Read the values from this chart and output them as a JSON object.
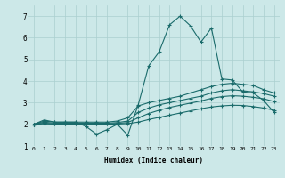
{
  "xlabel": "Humidex (Indice chaleur)",
  "bg_color": "#cce8e8",
  "grid_color": "#aacfcf",
  "line_color": "#1a6b6b",
  "xlim": [
    -0.5,
    23.5
  ],
  "ylim": [
    1,
    7.5
  ],
  "xticks": [
    0,
    1,
    2,
    3,
    4,
    5,
    6,
    7,
    8,
    9,
    10,
    11,
    12,
    13,
    14,
    15,
    16,
    17,
    18,
    19,
    20,
    21,
    22,
    23
  ],
  "yticks": [
    1,
    2,
    3,
    4,
    5,
    6,
    7
  ],
  "line1_x": [
    0,
    1,
    2,
    3,
    4,
    5,
    6,
    7,
    8,
    9,
    10,
    11,
    12,
    13,
    14,
    15,
    16,
    17,
    18,
    19,
    20,
    21,
    22,
    23
  ],
  "line1_y": [
    2.0,
    2.2,
    2.1,
    2.1,
    2.1,
    1.9,
    1.55,
    1.75,
    2.0,
    1.5,
    2.9,
    4.7,
    5.35,
    6.6,
    7.0,
    6.55,
    5.8,
    6.45,
    4.1,
    4.05,
    3.5,
    3.45,
    3.1,
    2.55
  ],
  "line2_x": [
    0,
    1,
    2,
    3,
    4,
    5,
    6,
    7,
    8,
    9,
    10,
    11,
    12,
    13,
    14,
    15,
    16,
    17,
    18,
    19,
    20,
    21,
    22,
    23
  ],
  "line2_y": [
    2.0,
    2.15,
    2.1,
    2.1,
    2.1,
    2.1,
    2.1,
    2.1,
    2.15,
    2.3,
    2.85,
    3.0,
    3.1,
    3.2,
    3.3,
    3.45,
    3.6,
    3.75,
    3.85,
    3.9,
    3.85,
    3.8,
    3.6,
    3.45
  ],
  "line3_x": [
    0,
    1,
    2,
    3,
    4,
    5,
    6,
    7,
    8,
    9,
    10,
    11,
    12,
    13,
    14,
    15,
    16,
    17,
    18,
    19,
    20,
    21,
    22,
    23
  ],
  "line3_y": [
    2.0,
    2.1,
    2.05,
    2.05,
    2.05,
    2.05,
    2.05,
    2.05,
    2.08,
    2.15,
    2.55,
    2.75,
    2.9,
    3.0,
    3.1,
    3.2,
    3.3,
    3.45,
    3.55,
    3.6,
    3.55,
    3.5,
    3.42,
    3.3
  ],
  "line4_x": [
    0,
    1,
    2,
    3,
    4,
    5,
    6,
    7,
    8,
    9,
    10,
    11,
    12,
    13,
    14,
    15,
    16,
    17,
    18,
    19,
    20,
    21,
    22,
    23
  ],
  "line4_y": [
    2.0,
    2.05,
    2.02,
    2.02,
    2.02,
    2.02,
    2.02,
    2.02,
    2.04,
    2.08,
    2.3,
    2.5,
    2.65,
    2.78,
    2.88,
    2.98,
    3.08,
    3.2,
    3.28,
    3.32,
    3.3,
    3.25,
    3.18,
    3.05
  ],
  "line5_x": [
    0,
    1,
    2,
    3,
    4,
    5,
    6,
    7,
    8,
    9,
    10,
    11,
    12,
    13,
    14,
    15,
    16,
    17,
    18,
    19,
    20,
    21,
    22,
    23
  ],
  "line5_y": [
    2.0,
    2.02,
    2.01,
    2.01,
    2.01,
    2.01,
    2.01,
    2.01,
    2.01,
    2.03,
    2.1,
    2.22,
    2.32,
    2.42,
    2.52,
    2.62,
    2.72,
    2.8,
    2.85,
    2.88,
    2.87,
    2.82,
    2.75,
    2.65
  ]
}
